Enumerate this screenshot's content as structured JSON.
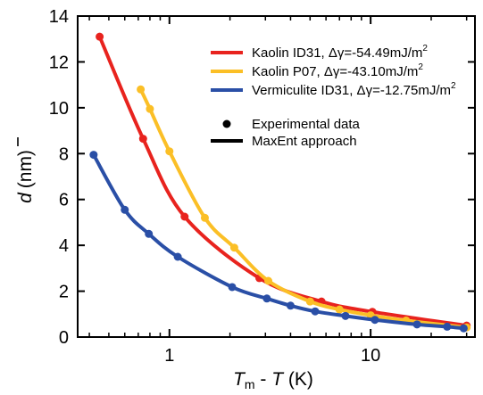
{
  "chart_data": {
    "type": "line",
    "x_scale": "log",
    "xlim": [
      0.35,
      33
    ],
    "ylim": [
      0,
      14
    ],
    "x_ticks": [
      1,
      10
    ],
    "y_ticks": [
      0,
      2,
      4,
      6,
      8,
      10,
      12,
      14
    ],
    "x_tick_labels": [
      "1",
      "10"
    ],
    "y_tick_labels": [
      "0",
      "2",
      "4",
      "6",
      "8",
      "10",
      "12",
      "14"
    ],
    "ylabel": {
      "symbol": "d",
      "unit": "(nm)"
    },
    "xlabel": {
      "t1": "T",
      "s1": "m",
      "minus": " - ",
      "t2": "T",
      "unit": " (K)"
    },
    "legend_position": "top-right",
    "series": [
      {
        "name": "Kaolin ID31, Δγ=-54.49mJ/m",
        "superscript": "2",
        "color": "#e8231e",
        "points": [
          [
            0.45,
            13.1
          ],
          [
            0.74,
            8.65
          ],
          [
            1.19,
            5.25
          ],
          [
            2.8,
            2.57
          ],
          [
            5.7,
            1.55
          ],
          [
            10.2,
            1.1
          ],
          [
            30,
            0.5
          ]
        ]
      },
      {
        "name": "Kaolin P07, Δγ=-43.10mJ/m",
        "superscript": "2",
        "color": "#fbbf26",
        "points": [
          [
            0.72,
            10.8
          ],
          [
            0.8,
            9.95
          ],
          [
            1.0,
            8.1
          ],
          [
            1.5,
            5.2
          ],
          [
            2.1,
            3.9
          ],
          [
            3.1,
            2.45
          ],
          [
            5.0,
            1.55
          ],
          [
            7.0,
            1.2
          ],
          [
            10.0,
            0.95
          ],
          [
            15.0,
            0.72
          ],
          [
            30.0,
            0.42
          ]
        ]
      },
      {
        "name": "Vermiculite ID31, Δγ=-12.75mJ/m",
        "superscript": "2",
        "color": "#2a4fa6",
        "points": [
          [
            0.42,
            7.95
          ],
          [
            0.6,
            5.55
          ],
          [
            0.79,
            4.5
          ],
          [
            1.1,
            3.5
          ],
          [
            2.05,
            2.18
          ],
          [
            3.05,
            1.68
          ],
          [
            4.0,
            1.37
          ],
          [
            5.3,
            1.12
          ],
          [
            7.5,
            0.92
          ],
          [
            10.5,
            0.75
          ],
          [
            17.0,
            0.55
          ],
          [
            24.0,
            0.45
          ],
          [
            29.0,
            0.38
          ]
        ]
      }
    ],
    "legend_extra": [
      {
        "kind": "marker",
        "label": "Experimental data"
      },
      {
        "kind": "line",
        "label": "MaxEnt approach"
      }
    ]
  }
}
